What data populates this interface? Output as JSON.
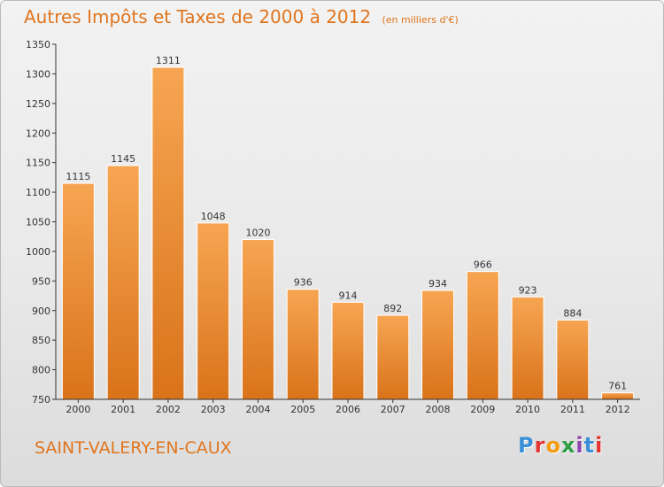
{
  "header": {
    "title": "Autres Impôts et Taxes de 2000 à 2012",
    "unit": "(en milliers d'€)"
  },
  "footer": {
    "city": "SAINT-VALERY-EN-CAUX",
    "logo_text": "Proxiti",
    "logo_letters": [
      {
        "char": "P",
        "color": "#3b8fd9"
      },
      {
        "char": "r",
        "color": "#e3342f"
      },
      {
        "char": "o",
        "color": "#f39c12"
      },
      {
        "char": "x",
        "color": "#2e9e44"
      },
      {
        "char": "i",
        "color": "#8e44ad"
      },
      {
        "char": "t",
        "color": "#3b8fd9"
      },
      {
        "char": "i",
        "color": "#e3342f"
      }
    ]
  },
  "chart_data": {
    "type": "bar",
    "title": "Autres Impôts et Taxes de 2000 à 2012",
    "subtitle": "(en milliers d'€)",
    "xlabel": "",
    "ylabel": "",
    "categories": [
      "2000",
      "2001",
      "2002",
      "2003",
      "2004",
      "2005",
      "2006",
      "2007",
      "2008",
      "2009",
      "2010",
      "2011",
      "2012"
    ],
    "values": [
      1115,
      1145,
      1311,
      1048,
      1020,
      936,
      914,
      892,
      934,
      966,
      923,
      884,
      761
    ],
    "ylim": [
      750,
      1350
    ],
    "yticks": [
      750,
      800,
      850,
      900,
      950,
      1000,
      1050,
      1100,
      1150,
      1200,
      1250,
      1300,
      1350
    ],
    "grid": false,
    "legend": "none",
    "colors": {
      "bar_top": "#f7a552",
      "bar_bottom": "#d9731a",
      "axis": "#333333",
      "text": "#333333"
    }
  }
}
